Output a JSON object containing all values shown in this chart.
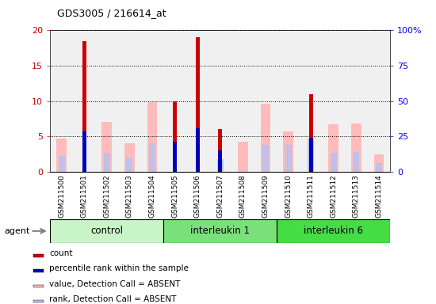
{
  "title": "GDS3005 / 216614_at",
  "samples": [
    "GSM211500",
    "GSM211501",
    "GSM211502",
    "GSM211503",
    "GSM211504",
    "GSM211505",
    "GSM211506",
    "GSM211507",
    "GSM211508",
    "GSM211509",
    "GSM211510",
    "GSM211511",
    "GSM211512",
    "GSM211513",
    "GSM211514"
  ],
  "group_colors": [
    "#c8f4c8",
    "#7ae07a",
    "#44dd44"
  ],
  "group_labels": [
    "control",
    "interleukin 1",
    "interleukin 6"
  ],
  "group_starts": [
    0,
    5,
    10
  ],
  "group_ends": [
    5,
    10,
    15
  ],
  "count_values": [
    0,
    18.5,
    0,
    0,
    0,
    10.0,
    19.0,
    6.0,
    0,
    0,
    0,
    11.0,
    0,
    0,
    0
  ],
  "rank_values": [
    0,
    5.7,
    0,
    0,
    0,
    4.2,
    6.2,
    3.0,
    0,
    0,
    0,
    4.8,
    0,
    0,
    0
  ],
  "absent_value_values": [
    4.7,
    0,
    7.0,
    4.0,
    9.9,
    0,
    0,
    0,
    4.2,
    9.6,
    5.7,
    0,
    6.7,
    6.8,
    2.5
  ],
  "absent_rank_values": [
    2.2,
    0,
    2.7,
    2.0,
    4.0,
    0,
    0,
    1.8,
    0,
    3.8,
    3.8,
    4.7,
    2.7,
    2.8,
    1.2
  ],
  "ylim_left": [
    0,
    20
  ],
  "ylim_right": [
    0,
    100
  ],
  "left_ticks": [
    0,
    5,
    10,
    15,
    20
  ],
  "right_ticks": [
    0,
    25,
    50,
    75,
    100
  ],
  "right_tick_labels": [
    "0",
    "25",
    "50",
    "75",
    "100%"
  ],
  "count_color": "#cc0000",
  "rank_color": "#0000bb",
  "absent_value_color": "#ffbbbb",
  "absent_rank_color": "#c0c0e8",
  "legend_items": [
    {
      "color": "#cc0000",
      "label": "count"
    },
    {
      "color": "#0000bb",
      "label": "percentile rank within the sample"
    },
    {
      "color": "#ffbbbb",
      "label": "value, Detection Call = ABSENT"
    },
    {
      "color": "#c0c0e8",
      "label": "rank, Detection Call = ABSENT"
    }
  ],
  "plot_bg": "#f0f0f0",
  "xtick_bg": "#d8d8d8"
}
